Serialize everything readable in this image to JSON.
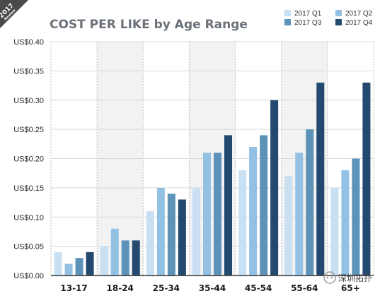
{
  "badge": {
    "year": "2017",
    "subtitle": "Review"
  },
  "watermark": {
    "text": "深圳拓扑"
  },
  "colors": {
    "series": [
      "#c9e0f3",
      "#93c1e4",
      "#5d93b8",
      "#24496e"
    ],
    "band": "#f2f2f2",
    "badge": "#4a4a4a",
    "grid": "#d9d9d9"
  },
  "chart_data": {
    "type": "bar",
    "title": "COST PER LIKE by Age Range",
    "xlabel": "",
    "ylabel": "",
    "ylim": [
      0,
      0.4
    ],
    "yticks": [
      0,
      0.05,
      0.1,
      0.15,
      0.2,
      0.25,
      0.3,
      0.35,
      0.4
    ],
    "ytick_labels": [
      "US$0.00",
      "US$0.05",
      "US$0.10",
      "US$0.15",
      "US$0.20",
      "US$0.25",
      "US$0.30",
      "US$0.35",
      "US$0.40"
    ],
    "categories": [
      "13-17",
      "18-24",
      "25-34",
      "35-44",
      "45-54",
      "55-64",
      "65+"
    ],
    "series": [
      {
        "name": "2017 Q1",
        "values": [
          0.04,
          0.05,
          0.11,
          0.15,
          0.18,
          0.17,
          0.15
        ]
      },
      {
        "name": "2017 Q2",
        "values": [
          0.02,
          0.08,
          0.15,
          0.21,
          0.22,
          0.21,
          0.18
        ]
      },
      {
        "name": "2017 Q3",
        "values": [
          0.03,
          0.06,
          0.14,
          0.21,
          0.24,
          0.25,
          0.2
        ]
      },
      {
        "name": "2017 Q4",
        "values": [
          0.04,
          0.06,
          0.13,
          0.24,
          0.3,
          0.33,
          0.33
        ]
      }
    ],
    "grid": true,
    "legend": "top-right"
  }
}
